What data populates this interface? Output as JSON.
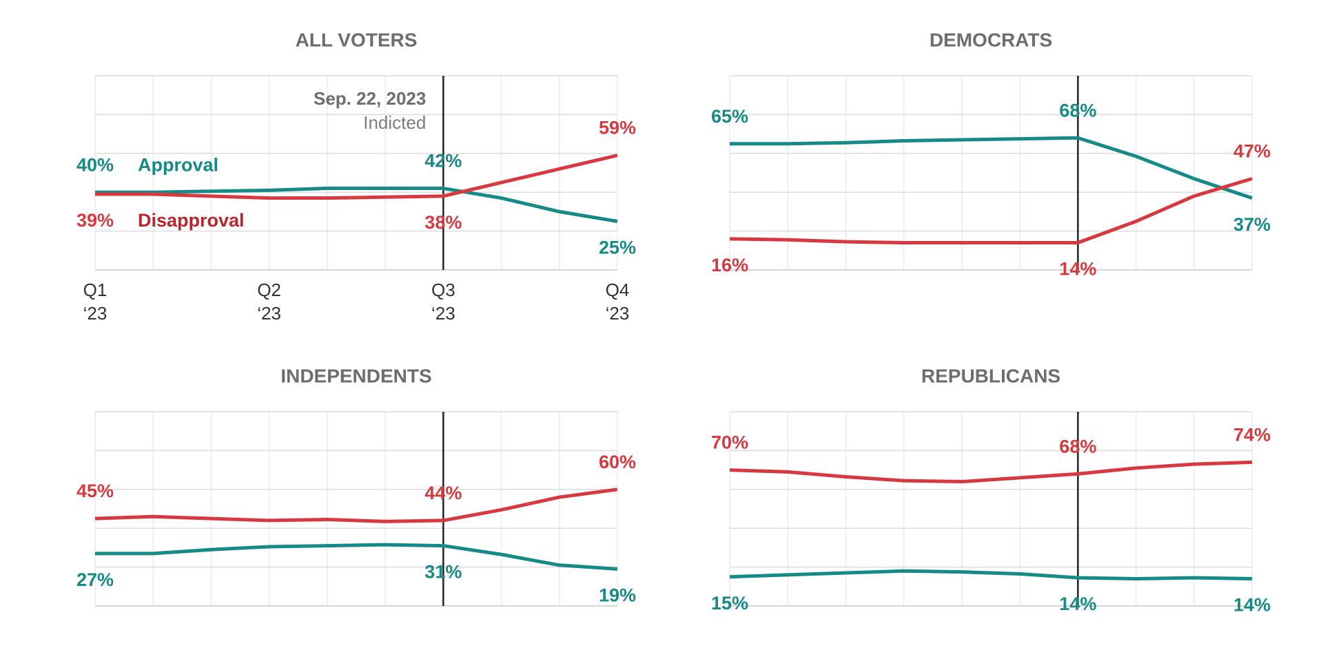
{
  "chart_data": [
    {
      "type": "line",
      "title": "ALL VOTERS",
      "categories": [
        "Q1 ‘23",
        null,
        null,
        "Q2 ‘23",
        null,
        null,
        "Q3 ‘23",
        null,
        null,
        "Q4 ‘23"
      ],
      "ylim": [
        0,
        100
      ],
      "yticks": [
        0,
        20,
        40,
        60,
        80,
        100
      ],
      "grid": true,
      "event_index": 6,
      "event": {
        "date": "Sep. 22, 2023",
        "label": "Indicted"
      },
      "series": [
        {
          "name": "Approval",
          "color": "#168a87",
          "legend_color": "#168a87",
          "values": [
            40,
            40,
            40.5,
            41,
            42,
            42,
            42,
            37,
            30,
            25
          ],
          "value_labels": [
            "40%",
            null,
            null,
            null,
            null,
            null,
            "42%",
            null,
            null,
            "25%"
          ]
        },
        {
          "name": "Disapproval",
          "color": "#d63a40",
          "legend_color": "#b8252c",
          "values": [
            39,
            39,
            38,
            37,
            37,
            37.5,
            38,
            45,
            52,
            59
          ],
          "value_labels": [
            "39%",
            null,
            null,
            null,
            null,
            null,
            "38%",
            null,
            null,
            "59%"
          ]
        }
      ]
    },
    {
      "type": "line",
      "title": "DEMOCRATS",
      "ylim": [
        0,
        100
      ],
      "yticks": [
        0,
        20,
        40,
        60,
        80,
        100
      ],
      "grid": true,
      "event_index": 6,
      "series": [
        {
          "color": "#168a87",
          "values": [
            65,
            65,
            65.5,
            66.5,
            67,
            67.5,
            68,
            58.5,
            47,
            37
          ],
          "value_labels": [
            "65%",
            null,
            null,
            null,
            null,
            null,
            "68%",
            null,
            null,
            "37%"
          ]
        },
        {
          "color": "#d63a40",
          "values": [
            16,
            15.5,
            14.5,
            14,
            14,
            14,
            14,
            25,
            38,
            47
          ],
          "value_labels": [
            "16%",
            null,
            null,
            null,
            null,
            null,
            "14%",
            null,
            null,
            "47%"
          ]
        }
      ]
    },
    {
      "type": "line",
      "title": "INDEPENDENTS",
      "ylim": [
        0,
        100
      ],
      "yticks": [
        0,
        20,
        40,
        60,
        80,
        100
      ],
      "grid": true,
      "event_index": 6,
      "series": [
        {
          "color": "#168a87",
          "values": [
            27,
            27,
            29,
            30.5,
            31,
            31.5,
            31,
            26.5,
            21,
            19
          ],
          "value_labels": [
            "27%",
            null,
            null,
            null,
            null,
            null,
            "31%",
            null,
            null,
            "19%"
          ]
        },
        {
          "color": "#d63a40",
          "values": [
            45,
            46,
            45,
            44,
            44.5,
            43.5,
            44,
            49.5,
            56,
            60
          ],
          "value_labels": [
            "45%",
            null,
            null,
            null,
            null,
            null,
            "44%",
            null,
            null,
            "60%"
          ]
        }
      ]
    },
    {
      "type": "line",
      "title": "REPUBLICANS",
      "ylim": [
        0,
        100
      ],
      "yticks": [
        0,
        20,
        40,
        60,
        80,
        100
      ],
      "grid": true,
      "event_index": 6,
      "series": [
        {
          "color": "#168a87",
          "values": [
            15,
            16,
            17,
            18,
            17.5,
            16.5,
            14.5,
            14,
            14.5,
            14
          ],
          "value_labels": [
            "15%",
            null,
            null,
            null,
            null,
            null,
            "14%",
            null,
            null,
            "14%"
          ]
        },
        {
          "color": "#d63a40",
          "values": [
            70,
            69,
            66.5,
            64.5,
            64,
            66,
            68,
            71,
            73,
            74
          ],
          "value_labels": [
            "70%",
            null,
            null,
            null,
            null,
            null,
            "68%",
            null,
            null,
            "74%"
          ]
        }
      ]
    }
  ]
}
